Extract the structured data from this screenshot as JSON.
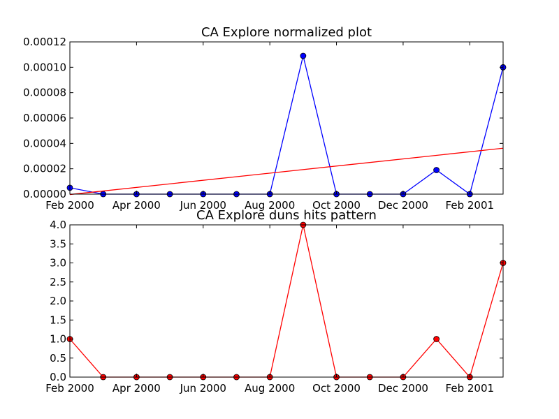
{
  "chart_data": [
    {
      "type": "line",
      "title": "CA Explore normalized plot",
      "xlabel": "",
      "ylabel": "",
      "x_tick_labels": [
        "Feb 2000",
        "Apr 2000",
        "Jun 2000",
        "Aug 2000",
        "Oct 2000",
        "Dec 2000",
        "Feb 2001"
      ],
      "x_tick_dates": [
        "2000-02",
        "2000-04",
        "2000-06",
        "2000-08",
        "2000-10",
        "2000-12",
        "2001-02"
      ],
      "y_tick_labels": [
        "0.00000",
        "0.00002",
        "0.00004",
        "0.00006",
        "0.00008",
        "0.00010",
        "0.00012"
      ],
      "ylim": [
        0,
        0.00012
      ],
      "xlim": [
        "2000-02",
        "2001-03"
      ],
      "grid": false,
      "series": [
        {
          "marker": "circle",
          "color": "#0000ff",
          "x": [
            "2000-02",
            "2000-03",
            "2000-04",
            "2000-05",
            "2000-06",
            "2000-07",
            "2000-08",
            "2000-09",
            "2000-10",
            "2000-11",
            "2000-12",
            "2001-01",
            "2001-02",
            "2001-03"
          ],
          "values": [
            5e-06,
            0.0,
            0.0,
            0.0,
            0.0,
            0.0,
            0.0,
            0.000109,
            0.0,
            0.0,
            0.0,
            1.9e-05,
            0.0,
            0.0001
          ]
        },
        {
          "marker": "none",
          "color": "#ff0000",
          "x": [
            "2000-02",
            "2001-03"
          ],
          "values": [
            -3e-07,
            3.62e-05
          ]
        }
      ]
    },
    {
      "type": "line",
      "title": "CA Explore duns hits pattern",
      "xlabel": "",
      "ylabel": "",
      "x_tick_labels": [
        "Feb 2000",
        "Apr 2000",
        "Jun 2000",
        "Aug 2000",
        "Oct 2000",
        "Dec 2000",
        "Feb 2001"
      ],
      "x_tick_dates": [
        "2000-02",
        "2000-04",
        "2000-06",
        "2000-08",
        "2000-10",
        "2000-12",
        "2001-02"
      ],
      "y_tick_labels": [
        "0.0",
        "0.5",
        "1.0",
        "1.5",
        "2.0",
        "2.5",
        "3.0",
        "3.5",
        "4.0"
      ],
      "ylim": [
        0,
        4.0
      ],
      "xlim": [
        "2000-02",
        "2001-03"
      ],
      "grid": false,
      "series": [
        {
          "marker": "circle",
          "color": "#ff0000",
          "x": [
            "2000-02",
            "2000-03",
            "2000-04",
            "2000-05",
            "2000-06",
            "2000-07",
            "2000-08",
            "2000-09",
            "2000-10",
            "2000-11",
            "2000-12",
            "2001-01",
            "2001-02",
            "2001-03"
          ],
          "values": [
            1,
            0,
            0,
            0,
            0,
            0,
            0,
            4,
            0,
            0,
            0,
            1,
            0,
            3
          ]
        }
      ]
    }
  ]
}
